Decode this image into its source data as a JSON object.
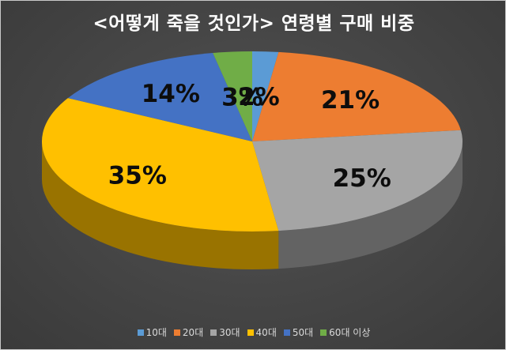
{
  "chart_data": {
    "type": "pie",
    "title": "<어떻게 죽을 것인가> 연령별 구매 비중",
    "categories": [
      "10대",
      "20대",
      "30대",
      "40대",
      "50대",
      "60대 이상"
    ],
    "values": [
      2,
      21,
      25,
      35,
      14,
      3
    ],
    "labels": [
      "2%",
      "21%",
      "25%",
      "35%",
      "14%",
      "3%"
    ],
    "colors": [
      "#5b9bd5",
      "#ed7d31",
      "#a5a5a5",
      "#ffc000",
      "#4472c4",
      "#70ad47"
    ],
    "style": "3d",
    "legend_position": "bottom",
    "start": "top, clockwise"
  }
}
